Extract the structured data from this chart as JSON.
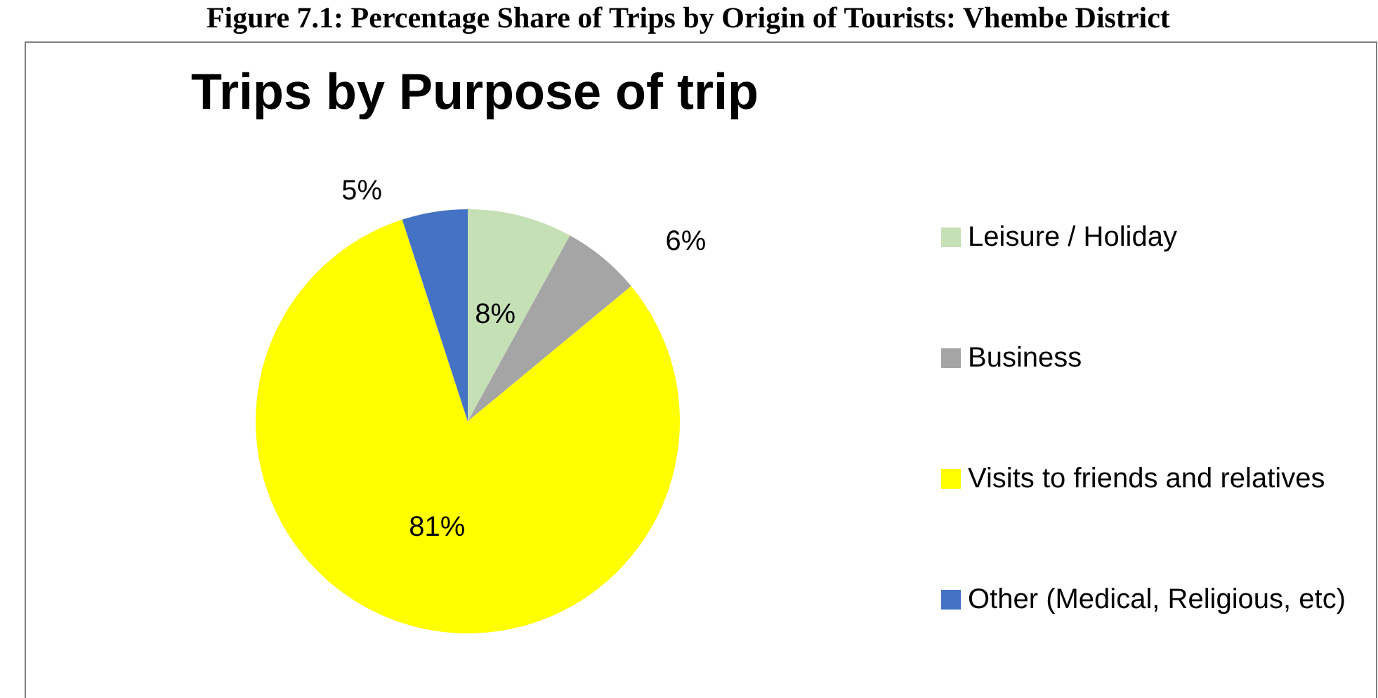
{
  "chart_data": {
    "type": "pie",
    "title": "Trips by Purpose of trip",
    "annotations": [
      "Figure 7.1: Percentage Share of Trips by Origin of Tourists: Vhembe District"
    ],
    "categories": [
      "Leisure / Holiday",
      "Business",
      "Visits to friends and relatives",
      "Other (Medical, Religious, etc)"
    ],
    "values": [
      8,
      6,
      81,
      5
    ],
    "value_labels": [
      "8%",
      "6%",
      "81%",
      "5%"
    ],
    "colors": [
      "#c5e0b4",
      "#a5a5a5",
      "#ffff00",
      "#4472c4"
    ],
    "legend": "right"
  }
}
